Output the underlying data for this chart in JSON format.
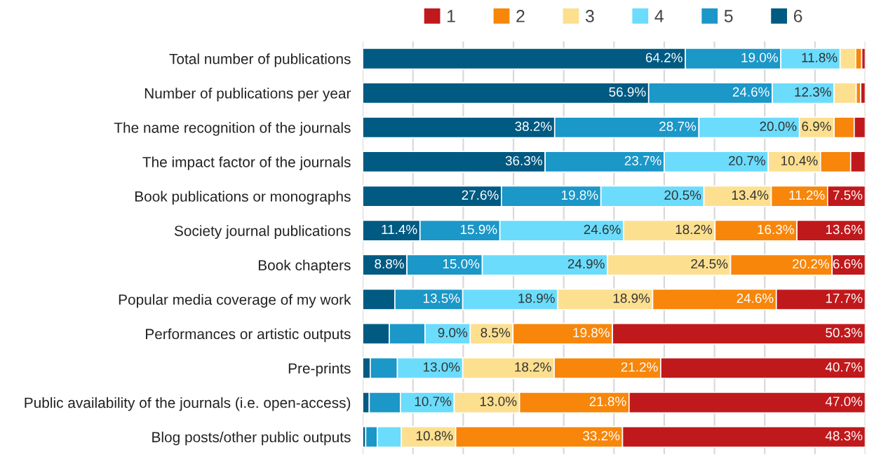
{
  "chart_data": {
    "type": "bar",
    "orientation": "horizontal",
    "stacked": true,
    "categories": [
      "Total number of publications",
      "Number of publications per year",
      "The name recognition of the journals",
      "The impact factor of the journals",
      "Book publications or monographs",
      "Society journal publications",
      "Book chapters",
      "Popular media coverage of my work",
      "Performances or artistic outputs",
      "Pre-prints",
      "Public availability of the journals (i.e. open-access)",
      "Blog posts/other public outputs"
    ],
    "series": [
      {
        "name": "6",
        "color": "#005a82",
        "values": [
          64.2,
          56.9,
          38.2,
          36.3,
          27.6,
          11.4,
          8.8,
          6.4,
          5.3,
          1.5,
          1.3,
          0.6
        ],
        "value_labels": [
          "64.2%",
          "56.9%",
          "38.2%",
          "36.3%",
          "27.6%",
          "11.4%",
          "8.8%",
          null,
          null,
          null,
          null,
          null
        ]
      },
      {
        "name": "5",
        "color": "#1b97c8",
        "values": [
          19.0,
          24.6,
          28.7,
          23.7,
          19.8,
          15.9,
          15.0,
          13.5,
          7.1,
          5.4,
          6.2,
          2.3
        ],
        "value_labels": [
          "19.0%",
          "24.6%",
          "28.7%",
          "23.7%",
          "19.8%",
          "15.9%",
          "15.0%",
          "13.5%",
          null,
          null,
          null,
          null
        ]
      },
      {
        "name": "4",
        "color": "#6bdcfc",
        "values": [
          11.8,
          12.3,
          20.0,
          20.7,
          20.5,
          24.6,
          24.9,
          18.9,
          9.0,
          13.0,
          10.7,
          4.8
        ],
        "value_labels": [
          "11.8%",
          "12.3%",
          "20.0%",
          "20.7%",
          "20.5%",
          "24.6%",
          "24.9%",
          "18.9%",
          "9.0%",
          "13.0%",
          "10.7%",
          null
        ]
      },
      {
        "name": "3",
        "color": "#fddf90",
        "values": [
          3.1,
          4.4,
          6.9,
          10.4,
          13.4,
          18.2,
          24.5,
          18.9,
          8.5,
          18.2,
          13.0,
          10.8
        ],
        "value_labels": [
          null,
          null,
          "6.9%",
          "10.4%",
          "13.4%",
          "18.2%",
          "24.5%",
          "18.9%",
          "8.5%",
          "18.2%",
          "13.0%",
          "10.8%"
        ]
      },
      {
        "name": "2",
        "color": "#f7860b",
        "values": [
          1.2,
          0.9,
          4.0,
          6.0,
          11.2,
          16.3,
          20.2,
          24.6,
          19.8,
          21.2,
          21.8,
          33.2
        ],
        "value_labels": [
          null,
          null,
          null,
          null,
          "11.2%",
          "16.3%",
          "20.2%",
          "24.6%",
          "19.8%",
          "21.2%",
          "21.8%",
          "33.2%"
        ]
      },
      {
        "name": "1",
        "color": "#c0191c",
        "values": [
          0.7,
          0.9,
          2.2,
          2.9,
          7.5,
          13.6,
          6.6,
          17.7,
          50.3,
          40.7,
          47.0,
          48.3
        ],
        "value_labels": [
          null,
          null,
          null,
          null,
          "7.5%",
          "13.6%",
          "6.6%",
          "17.7%",
          "50.3%",
          "40.7%",
          "47.0%",
          "48.3%"
        ]
      }
    ],
    "xlim": [
      0,
      100
    ],
    "xticks": [
      {
        "value": 0,
        "label": null
      },
      {
        "value": 10,
        "label": null
      },
      {
        "value": 20,
        "label": null
      },
      {
        "value": 30,
        "label": null
      },
      {
        "value": 40,
        "label": null
      },
      {
        "value": 50,
        "label": null
      },
      {
        "value": 60,
        "label": null
      },
      {
        "value": 70,
        "label": null
      },
      {
        "value": 80,
        "label": null
      },
      {
        "value": 90,
        "label": null
      },
      {
        "value": 100,
        "label": null
      }
    ],
    "grid": "x",
    "tick_labels": "y",
    "legend": "top"
  }
}
